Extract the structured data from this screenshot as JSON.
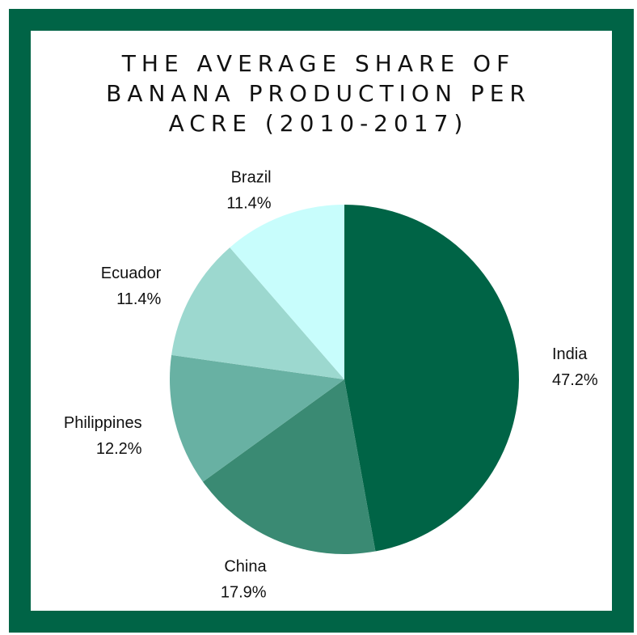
{
  "chart_data": {
    "type": "pie",
    "title_lines": [
      "THE AVERAGE SHARE OF",
      "BANANA PRODUCTION PER",
      "ACRE (2010-2017)"
    ],
    "slices": [
      {
        "label": "India",
        "value": 47.2,
        "value_label": "47.2%",
        "color": "#006446"
      },
      {
        "label": "China",
        "value": 17.9,
        "value_label": "17.9%",
        "color": "#3a8a73"
      },
      {
        "label": "Philippines",
        "value": 12.2,
        "value_label": "12.2%",
        "color": "#68b1a3"
      },
      {
        "label": "Ecuador",
        "value": 11.4,
        "value_label": "11.4%",
        "color": "#9cd8cf"
      },
      {
        "label": "Brazil",
        "value": 11.4,
        "value_label": "11.4%",
        "color": "#c8fdfc"
      }
    ],
    "start_angle": "top",
    "direction": "clockwise",
    "legend": "none",
    "frame_color": "#006446"
  }
}
